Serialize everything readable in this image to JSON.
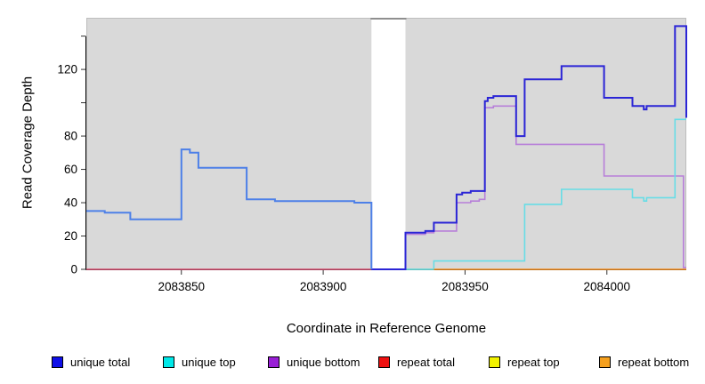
{
  "chart_data": {
    "type": "line",
    "subtype": "step-coverage",
    "title": "",
    "xlabel": "Coordinate in Reference Genome",
    "ylabel": "Read Coverage Depth",
    "xlim": [
      2083816.5,
      2084028
    ],
    "ylim": [
      0,
      151
    ],
    "grid": false,
    "plot_bg_color": "#d9d9d9",
    "gap_region": [
      2083917,
      2083929
    ],
    "shaded_regions": [
      [
        2083816.5,
        2083917
      ],
      [
        2083929,
        2084028
      ]
    ],
    "xticks": [
      {
        "value": 2083850,
        "label": "2083850"
      },
      {
        "value": 2083900,
        "label": "2083900"
      },
      {
        "value": 2083950,
        "label": "2083950"
      },
      {
        "value": 2084000,
        "label": "2084000"
      }
    ],
    "yticks": [
      {
        "value": 0,
        "label": "0"
      },
      {
        "value": 20,
        "label": "20"
      },
      {
        "value": 40,
        "label": "40"
      },
      {
        "value": 60,
        "label": "60"
      },
      {
        "value": 80,
        "label": "80"
      },
      {
        "value": 100,
        "label": ""
      },
      {
        "value": 120,
        "label": "120"
      },
      {
        "value": 140,
        "label": ""
      }
    ],
    "series": [
      {
        "name": "repeat total (visible at 0, left of gap)",
        "visible_color": "#dd5577",
        "width": 1.5,
        "points": [
          [
            2083816.5,
            0
          ]
        ],
        "end": 2083917
      },
      {
        "name": "repeat top over unique top (blend at 0 after gap)",
        "visible_color": "#97d6a6",
        "width": 1.5,
        "points": [
          [
            2083929,
            0
          ]
        ],
        "end": 2083939
      },
      {
        "name": "unique bottom",
        "visible_color": "#b77fd9",
        "width": 1.6,
        "points": [
          [
            2083929,
            21
          ],
          [
            2083936,
            22
          ],
          [
            2083939,
            23
          ],
          [
            2083947,
            40
          ],
          [
            2083952,
            41
          ],
          [
            2083955,
            42
          ],
          [
            2083957,
            97
          ],
          [
            2083960,
            98
          ],
          [
            2083968,
            75
          ],
          [
            2083999,
            56
          ],
          [
            2084027,
            1
          ]
        ],
        "end": 2084028
      },
      {
        "name": "unique top",
        "visible_color": "#67dde6",
        "width": 1.6,
        "points": [
          [
            2083929,
            0
          ],
          [
            2083939,
            5
          ],
          [
            2083971,
            39
          ],
          [
            2083984,
            48
          ],
          [
            2084009,
            43
          ],
          [
            2084013,
            41
          ],
          [
            2084014,
            43
          ],
          [
            2084024,
            90
          ]
        ],
        "end": 2084028
      },
      {
        "name": "repeat bottom",
        "visible_color": "#ff9727",
        "width": 1.6,
        "points": [
          [
            2083939,
            0
          ]
        ],
        "end": 2084028
      },
      {
        "name": "unique total (right of gap)",
        "visible_color": "#2b25d6",
        "width": 2,
        "points": [
          [
            2083917,
            0
          ],
          [
            2083929,
            22
          ],
          [
            2083936,
            23
          ],
          [
            2083939,
            28
          ],
          [
            2083947,
            45
          ],
          [
            2083949,
            46
          ],
          [
            2083952,
            47
          ],
          [
            2083957,
            101
          ],
          [
            2083958,
            103
          ],
          [
            2083960,
            104
          ],
          [
            2083968,
            80
          ],
          [
            2083971,
            114
          ],
          [
            2083984,
            122
          ],
          [
            2083999,
            103
          ],
          [
            2084009,
            98
          ],
          [
            2084013,
            96
          ],
          [
            2084014,
            98
          ],
          [
            2084024,
            146
          ],
          [
            2084028,
            91
          ]
        ],
        "end": 2084028
      },
      {
        "name": "unique total (left of gap)",
        "visible_color": "#4d80e8",
        "width": 2,
        "points": [
          [
            2083816.5,
            35
          ],
          [
            2083823,
            34
          ],
          [
            2083832,
            30
          ],
          [
            2083850,
            72
          ],
          [
            2083853,
            70
          ],
          [
            2083856,
            61
          ],
          [
            2083873,
            42
          ],
          [
            2083883,
            41
          ],
          [
            2083911,
            40
          ],
          [
            2083917,
            0
          ]
        ],
        "end": 2083917
      }
    ],
    "legend": [
      {
        "label": "unique total",
        "color": "#0f0fe8"
      },
      {
        "label": "unique top",
        "color": "#00e8e8"
      },
      {
        "label": "unique bottom",
        "color": "#991fd6"
      },
      {
        "label": "repeat total",
        "color": "#ee1111"
      },
      {
        "label": "repeat top",
        "color": "#f2f200"
      },
      {
        "label": "repeat bottom",
        "color": "#f5a01e"
      }
    ],
    "legend_position": "bottom"
  }
}
